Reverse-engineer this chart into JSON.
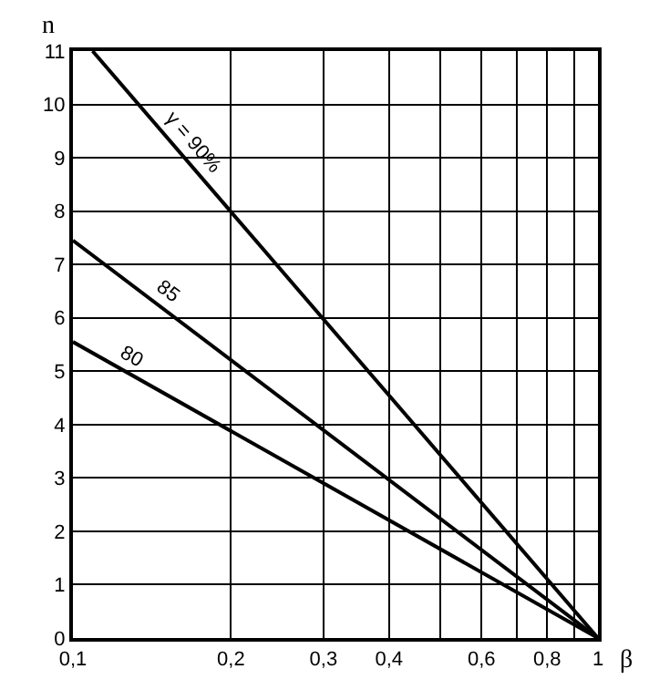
{
  "chart_data": {
    "type": "line",
    "xlabel": "β",
    "ylabel": "n",
    "log": "x",
    "grid": true,
    "marker": "none",
    "line_style": "solid",
    "xlim": [
      0.1,
      1
    ],
    "ylim": [
      0,
      11
    ],
    "xticks": [
      {
        "value": 0.1,
        "label": "0,1"
      },
      {
        "value": 0.2,
        "label": "0,2"
      },
      {
        "value": 0.3,
        "label": "0,3"
      },
      {
        "value": 0.4,
        "label": "0,4"
      },
      {
        "value": 0.5,
        "label": null
      },
      {
        "value": 0.6,
        "label": "0,6"
      },
      {
        "value": 0.7,
        "label": null
      },
      {
        "value": 0.8,
        "label": "0,8"
      },
      {
        "value": 0.9,
        "label": null
      },
      {
        "value": 1,
        "label": "1"
      }
    ],
    "yticks": [
      0,
      1,
      2,
      3,
      4,
      5,
      6,
      7,
      8,
      9,
      10,
      11
    ],
    "series": [
      {
        "color": "#000000",
        "x": [
          0.109,
          1
        ],
        "values": [
          11,
          0
        ]
      },
      {
        "color": "#000000",
        "x": [
          0.1,
          1
        ],
        "values": [
          7.45,
          0
        ]
      },
      {
        "color": "#000000",
        "x": [
          0.1,
          1
        ],
        "values": [
          5.55,
          0
        ]
      }
    ],
    "annotations": [
      {
        "text": "γ = 90%",
        "x": 0.16,
        "y": 9.1
      },
      {
        "text": "85",
        "x": 0.145,
        "y": 6.25
      },
      {
        "text": "80",
        "x": 0.125,
        "y": 5.0
      }
    ]
  }
}
